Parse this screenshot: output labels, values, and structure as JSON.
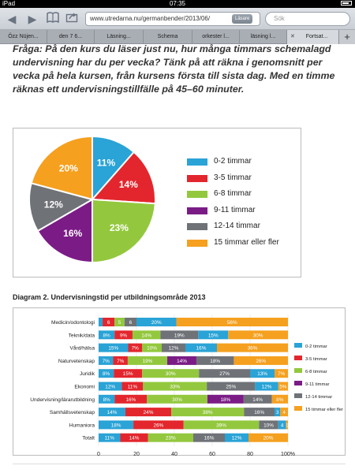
{
  "status": {
    "device": "iPad",
    "time": "07:35"
  },
  "toolbar": {
    "url": "www.utredarna.nu/germanbender/2013/06/",
    "reader_label": "Läsare",
    "search_placeholder": "Sök"
  },
  "tabs": [
    {
      "label": "Özz Nüjen..."
    },
    {
      "label": "den 7 6..."
    },
    {
      "label": "Läsning..."
    },
    {
      "label": "Schema"
    },
    {
      "label": "orkester l..."
    },
    {
      "label": "läsning l..."
    },
    {
      "label": "Fortsat..."
    }
  ],
  "article": {
    "question": "Fråga: På den kurs du läser just nu, hur många timmars schemalagd undervisning har du per vecka? Tänk på att räkna i genomsnitt per vecka på hela kursen, från kursens första till sista dag. Med en timme räknas ett undervisningstillfälle på 45–60 minuter."
  },
  "colors": {
    "c0_2": "#2aa3d6",
    "c3_5": "#e3262d",
    "c6_8": "#93c83e",
    "c9_11": "#7b1c86",
    "c12_14": "#6f7378",
    "c15": "#f5a01f"
  },
  "chart_data": [
    {
      "type": "pie",
      "title": "",
      "series": [
        {
          "name": "0-2 timmar",
          "value": 11,
          "label": "11%"
        },
        {
          "name": "3-5 timmar",
          "value": 14,
          "label": "14%"
        },
        {
          "name": "6-8 timmar",
          "value": 23,
          "label": "23%"
        },
        {
          "name": "9-11 timmar",
          "value": 16,
          "label": "16%"
        },
        {
          "name": "12-14 timmar",
          "value": 12,
          "label": "12%"
        },
        {
          "name": "15 timmar eller fler",
          "value": 20,
          "label": "20%"
        }
      ]
    },
    {
      "type": "bar",
      "stacked": true,
      "orientation": "horizontal",
      "title": "Diagram 2. Undervisningstid per utbildningsområde 2013",
      "categories": [
        "Medicin/odontologi",
        "Teknik/data",
        "Vård/hälsa",
        "Naturvetenskap",
        "Juridik",
        "Ekonomi",
        "Undervisning/lärarutbildning",
        "Samhällsvetenskap",
        "Humaniora",
        "Totalt"
      ],
      "xlim": [
        0,
        100
      ],
      "xticks": [
        "0",
        "20",
        "40",
        "60",
        "80",
        "100%"
      ],
      "legend_position": "right",
      "series": [
        {
          "name": "0-2 timmar",
          "values": [
            2,
            8,
            15,
            7,
            8,
            12,
            8,
            14,
            18,
            11
          ],
          "labels": [
            "",
            "8%",
            "15%",
            "7%",
            "8%",
            "12%",
            "8%",
            "14%",
            "18%",
            "11%"
          ]
        },
        {
          "name": "3-5 timmar",
          "values": [
            6,
            9,
            7,
            7,
            15,
            11,
            16,
            24,
            26,
            14
          ],
          "labels": [
            "6",
            "9%",
            "7%",
            "7%",
            "15%",
            "11%",
            "16%",
            "24%",
            "26%",
            "14%"
          ]
        },
        {
          "name": "6-8 timmar",
          "values": [
            5,
            14,
            10,
            19,
            30,
            33,
            30,
            38,
            39,
            23
          ],
          "labels": [
            "5",
            "14%",
            "10%",
            "19%",
            "30%",
            "33%",
            "30%",
            "38%",
            "39%",
            "23%"
          ]
        },
        {
          "name": "9-11 timmar",
          "values": [
            0,
            0,
            0,
            14,
            0,
            0,
            18,
            0,
            0,
            0
          ],
          "labels": [
            "",
            "",
            "",
            "14%",
            "",
            "",
            "18%",
            "",
            "",
            ""
          ]
        },
        {
          "name": "12-14 timmar",
          "values": [
            6,
            19,
            12,
            18,
            27,
            25,
            14,
            16,
            10,
            16
          ],
          "labels": [
            "6",
            "19%",
            "12%",
            "18%",
            "27%",
            "25%",
            "14%",
            "16%",
            "10%",
            "16%"
          ]
        },
        {
          "name": "0-2 timmar (b)",
          "values": [
            20,
            15,
            16,
            0,
            13,
            12,
            0,
            3,
            4,
            12
          ],
          "labels": [
            "20%",
            "15%",
            "16%",
            "",
            "13%",
            "12%",
            "",
            "3",
            "4",
            "12%"
          ]
        },
        {
          "name": "15 timmar eller fler",
          "values": [
            56,
            30,
            36,
            26,
            7,
            5,
            8,
            4,
            1,
            20
          ],
          "labels": [
            "56%",
            "30%",
            "36%",
            "26%",
            "7%",
            "5%",
            "8%",
            "4",
            "1",
            "20%"
          ]
        }
      ]
    }
  ]
}
